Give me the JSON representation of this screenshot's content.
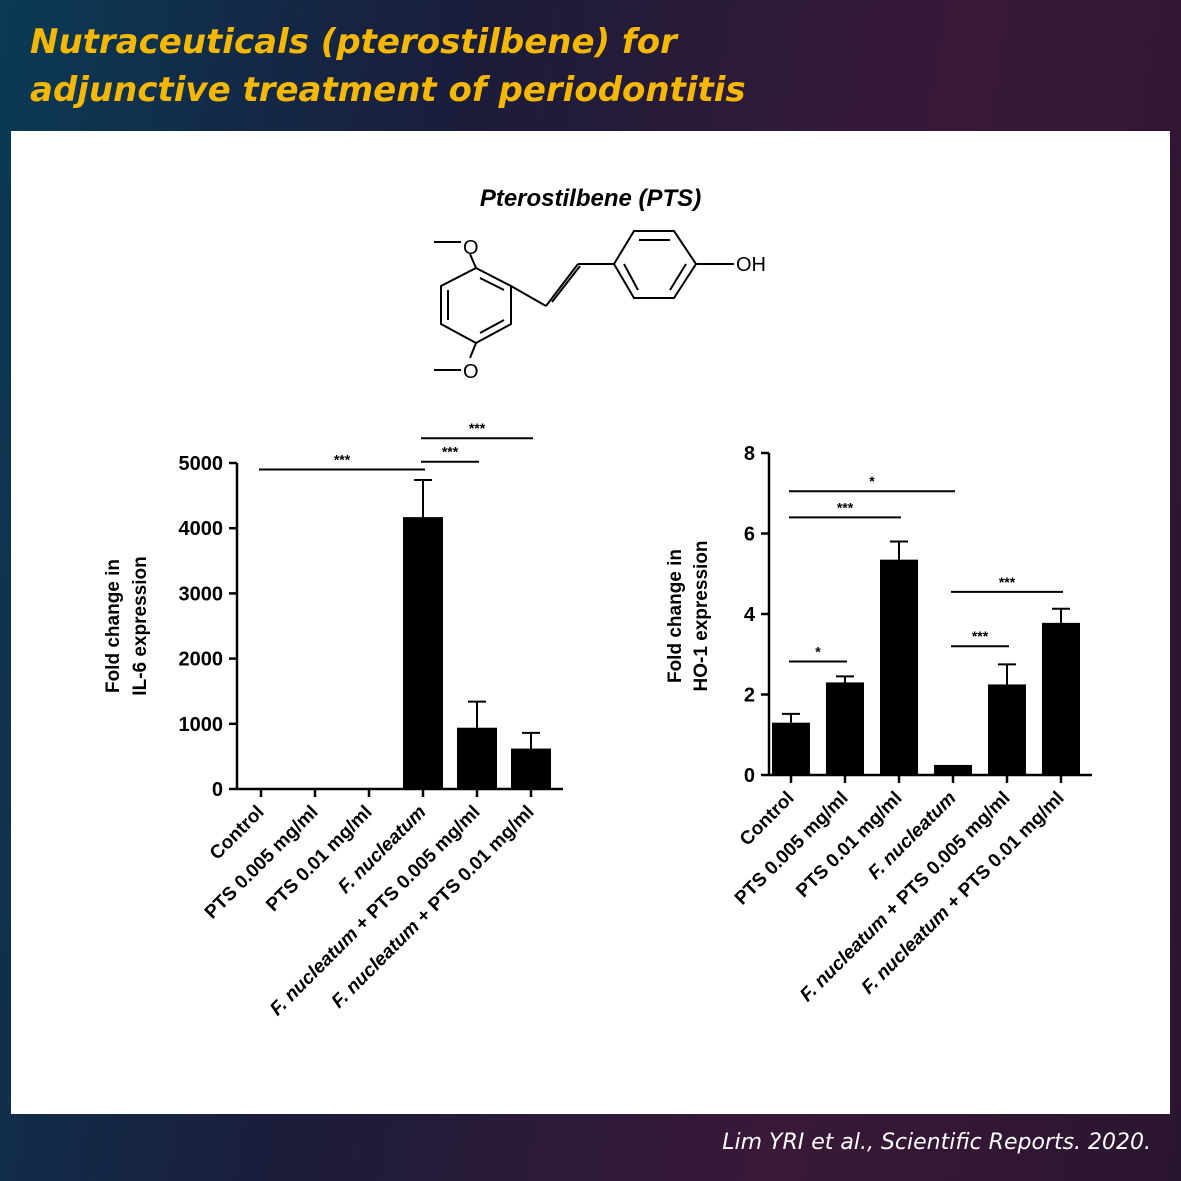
{
  "header": {
    "title_line1": "Nutraceuticals (pterostilbene) for",
    "title_line2": "adjunctive treatment of periodontitis"
  },
  "compound": {
    "name": "Pterostilbene (PTS)",
    "label_o1": "O",
    "label_o2": "O",
    "label_oh": "OH"
  },
  "citation": "Lim YRI et al., Scientific Reports. 2020.",
  "colors": {
    "title": "#f5b800",
    "bar": "#000000",
    "panel": "#ffffff"
  },
  "chart_data": [
    {
      "type": "bar",
      "ylabel": [
        "Fold change in",
        "IL-6 expression"
      ],
      "ylim": [
        0,
        5000
      ],
      "yticks": [
        0,
        1000,
        2000,
        3000,
        4000,
        5000
      ],
      "categories": [
        [
          {
            "t": "Control",
            "i": false
          }
        ],
        [
          {
            "t": "PTS 0.005 mg/ml",
            "i": false
          }
        ],
        [
          {
            "t": "PTS 0.01 mg/ml",
            "i": false
          }
        ],
        [
          {
            "t": "F. nucleatum",
            "i": true
          }
        ],
        [
          {
            "t": "F. nucleatum",
            "i": true
          },
          {
            "t": " + PTS 0.005 mg/ml",
            "i": false
          }
        ],
        [
          {
            "t": "F. nucleatum",
            "i": true
          },
          {
            "t": " + PTS 0.01 mg/ml",
            "i": false
          }
        ]
      ],
      "values": [
        1,
        1,
        1,
        4170,
        940,
        620
      ],
      "errors": [
        0,
        0,
        0,
        570,
        400,
        240
      ],
      "significance": [
        {
          "from": 0,
          "to": 3,
          "label": "***",
          "y": 4900
        },
        {
          "from": 3,
          "to": 4,
          "label": "***",
          "y": 5020
        },
        {
          "from": 3,
          "to": 5,
          "label": "***",
          "y": 5380
        }
      ]
    },
    {
      "type": "bar",
      "ylabel": [
        "Fold change in",
        "HO-1 expression"
      ],
      "ylim": [
        0,
        8
      ],
      "yticks": [
        0,
        2,
        4,
        6,
        8
      ],
      "categories": [
        [
          {
            "t": "Control",
            "i": false
          }
        ],
        [
          {
            "t": "PTS 0.005 mg/ml",
            "i": false
          }
        ],
        [
          {
            "t": "PTS 0.01 mg/ml",
            "i": false
          }
        ],
        [
          {
            "t": "F. nucleatum",
            "i": true
          }
        ],
        [
          {
            "t": "F. nucleatum",
            "i": true
          },
          {
            "t": " + PTS 0.005 mg/ml",
            "i": false
          }
        ],
        [
          {
            "t": "F. nucleatum",
            "i": true
          },
          {
            "t": " + PTS 0.01 mg/ml",
            "i": false
          }
        ]
      ],
      "values": [
        1.3,
        2.3,
        5.35,
        0.25,
        2.25,
        3.78
      ],
      "errors": [
        0.22,
        0.15,
        0.45,
        0,
        0.5,
        0.35
      ],
      "significance": [
        {
          "from": 0,
          "to": 1,
          "label": "*",
          "y": 2.82
        },
        {
          "from": 0,
          "to": 3,
          "label": "*",
          "y": 7.05
        },
        {
          "from": 0,
          "to": 2,
          "label": "***",
          "y": 6.4
        },
        {
          "from": 3,
          "to": 4,
          "label": "***",
          "y": 3.2
        },
        {
          "from": 3,
          "to": 5,
          "label": "***",
          "y": 4.55
        }
      ]
    }
  ]
}
